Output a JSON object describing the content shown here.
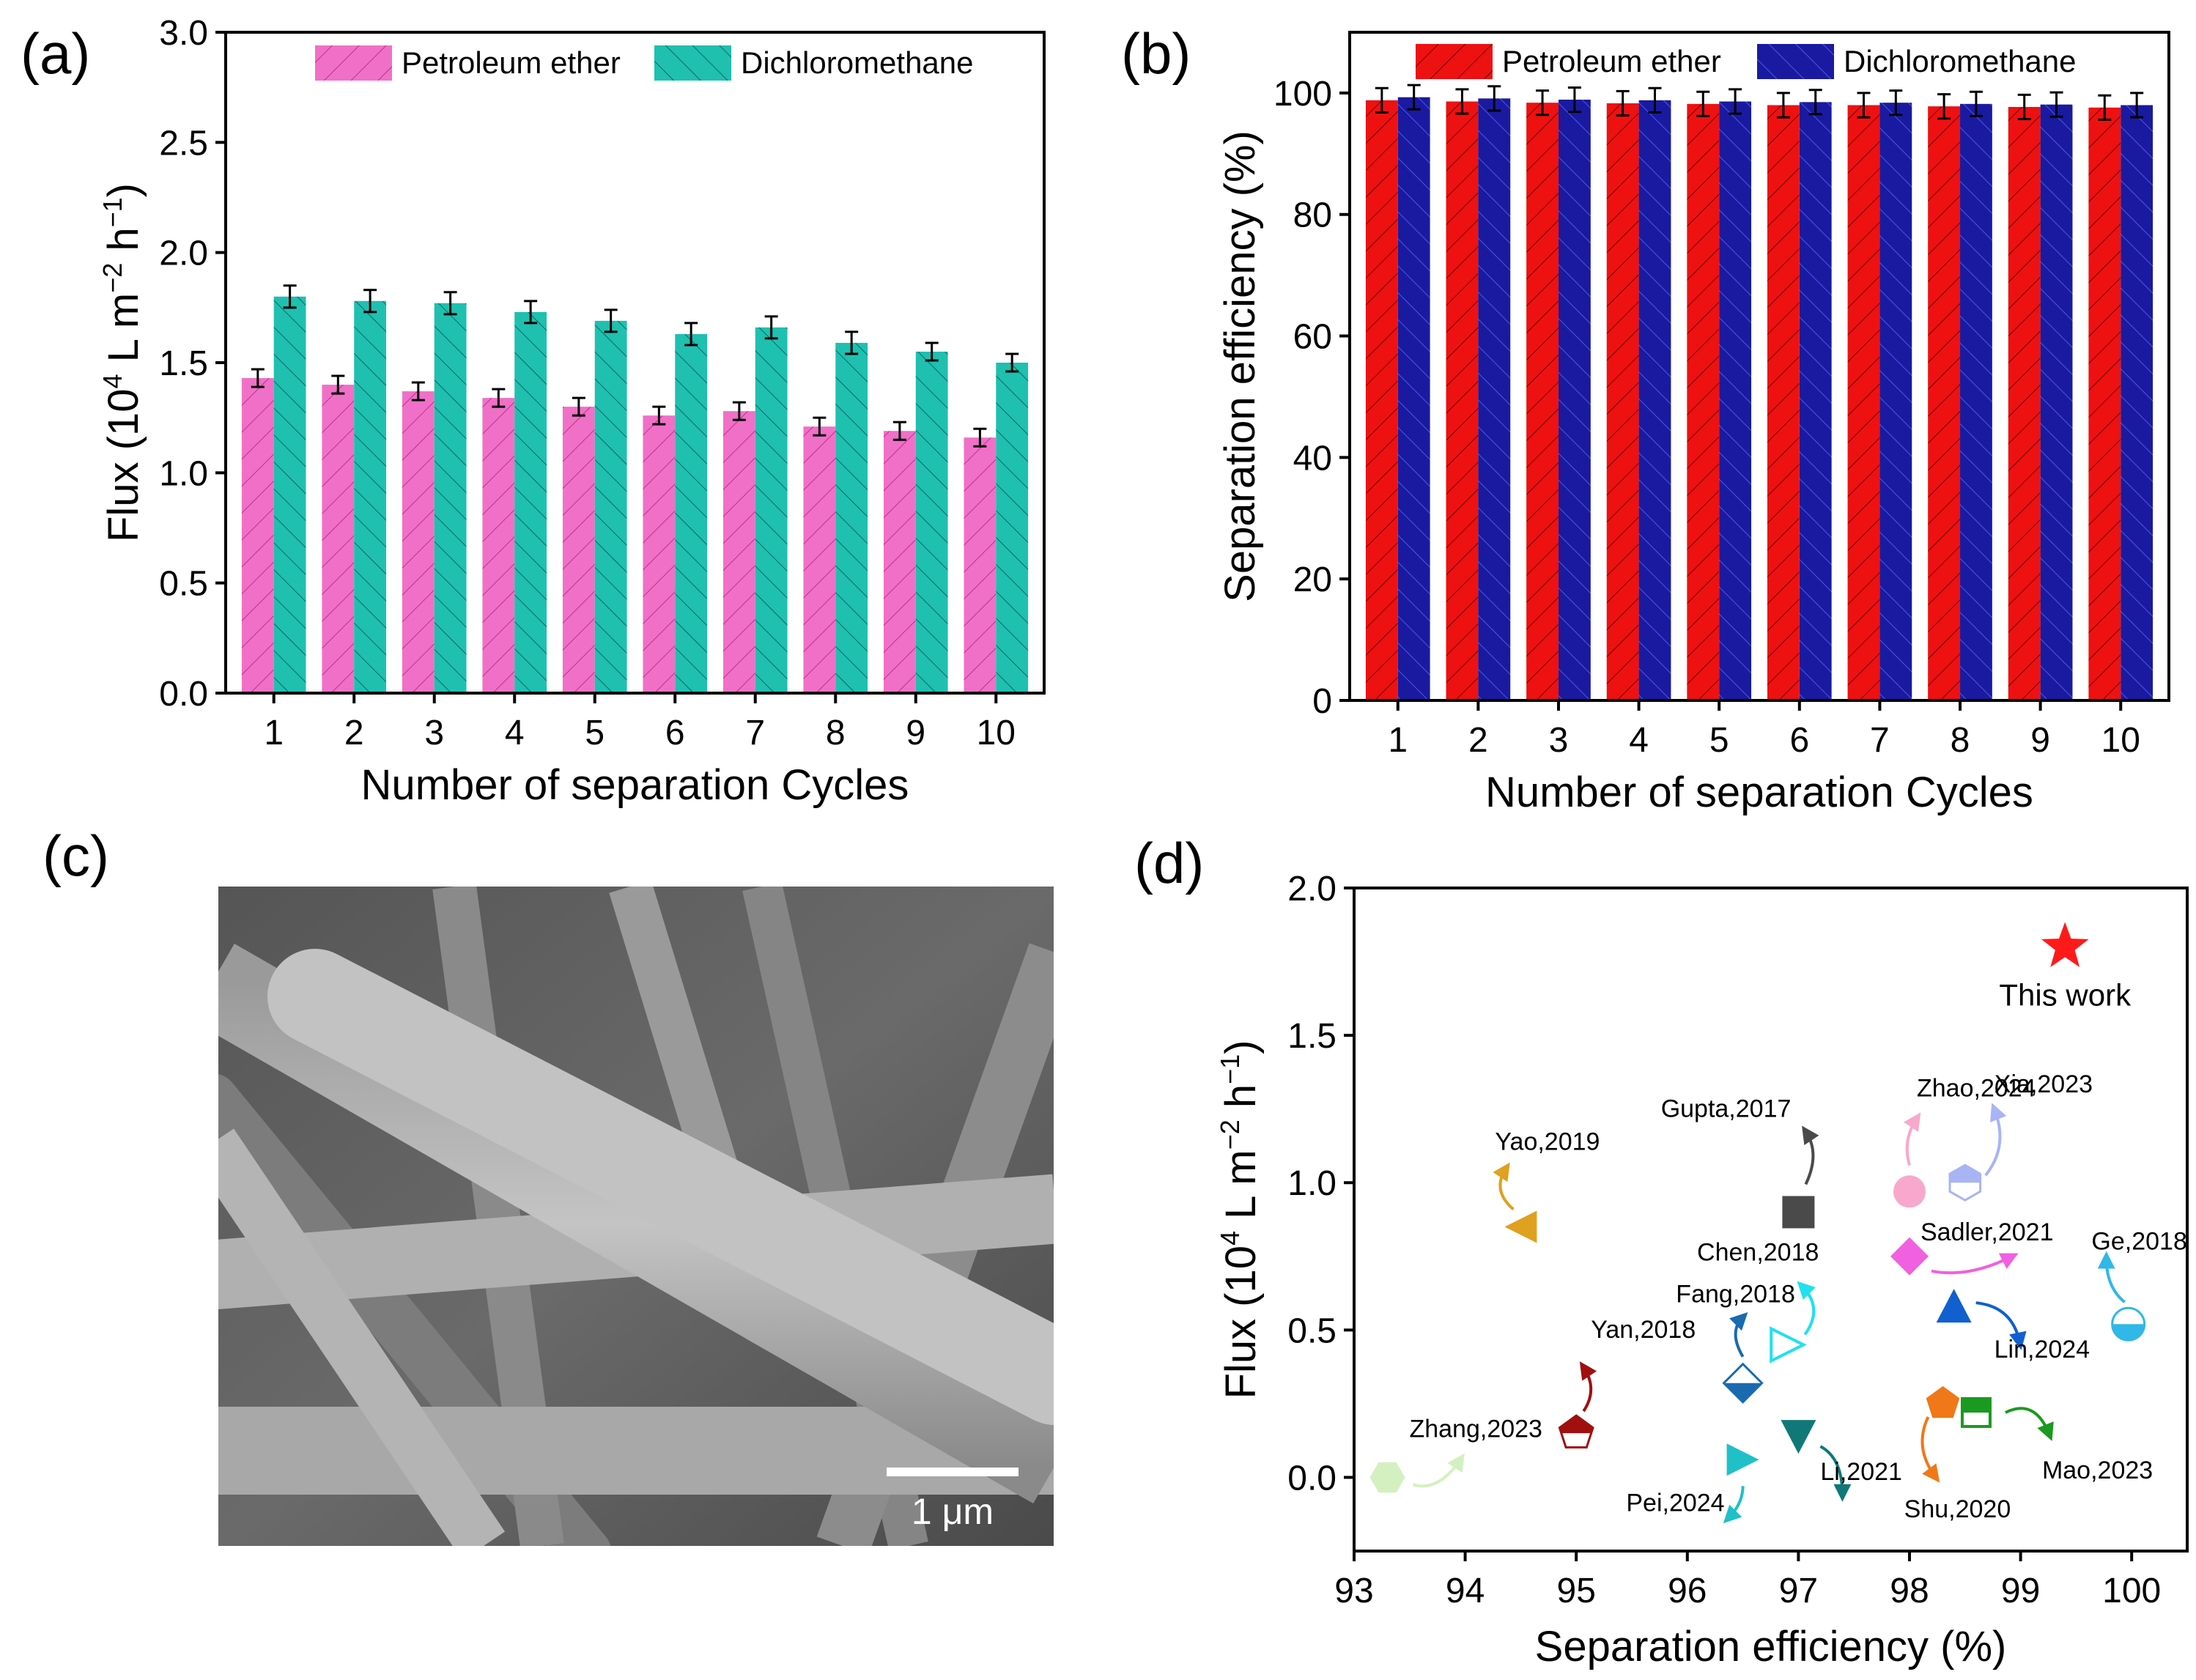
{
  "panels": {
    "a": {
      "letter": "(a)"
    },
    "b": {
      "letter": "(b)"
    },
    "c": {
      "letter": "(c)",
      "scale_bar_label": "1 μm"
    },
    "d": {
      "letter": "(d)"
    }
  },
  "chart_data": [
    {
      "id": "a",
      "type": "bar",
      "title": "",
      "xlabel": "Number of separation Cycles",
      "ylabel_parts": [
        "Flux (10",
        "4",
        " L m",
        "−2",
        " h",
        "−1",
        ")"
      ],
      "ylim": [
        0,
        3.0
      ],
      "yticks": [
        "0.0",
        "0.5",
        "1.0",
        "1.5",
        "2.0",
        "2.5",
        "3.0"
      ],
      "categories": [
        "1",
        "2",
        "3",
        "4",
        "5",
        "6",
        "7",
        "8",
        "9",
        "10"
      ],
      "legend_position": "top",
      "series": [
        {
          "name": "Petroleum ether",
          "color": "#f070c8",
          "values": [
            1.43,
            1.4,
            1.37,
            1.34,
            1.3,
            1.26,
            1.28,
            1.21,
            1.19,
            1.16
          ],
          "errors": [
            0.04,
            0.04,
            0.04,
            0.04,
            0.04,
            0.04,
            0.04,
            0.04,
            0.04,
            0.04
          ]
        },
        {
          "name": "Dichloromethane",
          "color": "#1fc0b0",
          "values": [
            1.8,
            1.78,
            1.77,
            1.73,
            1.69,
            1.63,
            1.66,
            1.59,
            1.55,
            1.5
          ],
          "errors": [
            0.05,
            0.05,
            0.05,
            0.05,
            0.05,
            0.05,
            0.05,
            0.05,
            0.04,
            0.04
          ]
        }
      ]
    },
    {
      "id": "b",
      "type": "bar",
      "title": "",
      "xlabel": "Number of separation Cycles",
      "ylabel": "Separation efficiency (%)",
      "ylim": [
        0,
        110
      ],
      "yticks": [
        "0",
        "20",
        "40",
        "60",
        "80",
        "100"
      ],
      "categories": [
        "1",
        "2",
        "3",
        "4",
        "5",
        "6",
        "7",
        "8",
        "9",
        "10"
      ],
      "legend_position": "top",
      "series": [
        {
          "name": "Petroleum ether",
          "color": "#ee1111",
          "values": [
            98.8,
            98.6,
            98.4,
            98.3,
            98.2,
            98.0,
            98.0,
            97.8,
            97.7,
            97.6
          ],
          "errors": [
            2.0,
            2.0,
            2.0,
            2.0,
            2.0,
            2.0,
            2.0,
            2.0,
            2.0,
            2.0
          ]
        },
        {
          "name": "Dichloromethane",
          "color": "#1a1aa0",
          "values": [
            99.3,
            99.1,
            98.9,
            98.8,
            98.6,
            98.5,
            98.4,
            98.2,
            98.1,
            98.0
          ],
          "errors": [
            2.0,
            2.0,
            2.0,
            2.0,
            2.0,
            2.0,
            2.0,
            2.0,
            2.0,
            2.0
          ]
        }
      ]
    },
    {
      "id": "d",
      "type": "scatter",
      "title": "",
      "xlabel": "Separation efficiency (%)",
      "ylabel_parts": [
        "Flux (10",
        "4",
        " L m",
        "−2",
        " h",
        "−1",
        ")"
      ],
      "xlim": [
        93,
        100.5
      ],
      "ylim": [
        -0.25,
        2.0
      ],
      "xticks": [
        "93",
        "94",
        "95",
        "96",
        "97",
        "98",
        "99",
        "100"
      ],
      "yticks": [
        "0.0",
        "0.5",
        "1.0",
        "1.5",
        "2.0"
      ],
      "points": [
        {
          "label": "This work",
          "x": 99.4,
          "y": 1.8,
          "marker": "star",
          "color": "#ff1a1a"
        },
        {
          "label": "Gupta,2017",
          "x": 97.0,
          "y": 0.9,
          "marker": "square",
          "color": "#4a4a4a"
        },
        {
          "label": "Zhao,2024",
          "x": 98.0,
          "y": 0.97,
          "marker": "circle",
          "color": "#f8a8cc"
        },
        {
          "label": "Xia,2023",
          "x": 98.5,
          "y": 1.0,
          "marker": "hexagon-half",
          "color": "#a8b4f4"
        },
        {
          "label": "Yao,2019",
          "x": 94.5,
          "y": 0.85,
          "marker": "triangle-left",
          "color": "#e0a020"
        },
        {
          "label": "Sadler,2021",
          "x": 98.0,
          "y": 0.75,
          "marker": "diamond",
          "color": "#f060e0"
        },
        {
          "label": "Chen,2018",
          "x": 96.9,
          "y": 0.45,
          "marker": "triangle-right-open",
          "color": "#20e0f0"
        },
        {
          "label": "Ge,2018",
          "x": 99.97,
          "y": 0.52,
          "marker": "circle-half",
          "color": "#30b8e8"
        },
        {
          "label": "Fang,2018",
          "x": 96.5,
          "y": 0.32,
          "marker": "diamond-half",
          "color": "#1a6ab0"
        },
        {
          "label": "Lin,2024",
          "x": 98.4,
          "y": 0.58,
          "marker": "triangle-up",
          "color": "#1060d0"
        },
        {
          "label": "Yan,2018",
          "x": 95.0,
          "y": 0.15,
          "marker": "pentagon-half",
          "color": "#a01010"
        },
        {
          "label": "Shu,2020",
          "x": 98.3,
          "y": 0.25,
          "marker": "pentagon",
          "color": "#f07818"
        },
        {
          "label": "Mao,2023",
          "x": 98.6,
          "y": 0.22,
          "marker": "square-half",
          "color": "#1a9a20"
        },
        {
          "label": "Zhang,2023",
          "x": 93.3,
          "y": 0.0,
          "marker": "hexagon",
          "color": "#d4f0c0"
        },
        {
          "label": "Pei,2024",
          "x": 96.5,
          "y": 0.06,
          "marker": "triangle-right",
          "color": "#20c0c8"
        },
        {
          "label": "Li,2021",
          "x": 97.0,
          "y": 0.14,
          "marker": "triangle-down",
          "color": "#107878"
        }
      ]
    }
  ]
}
